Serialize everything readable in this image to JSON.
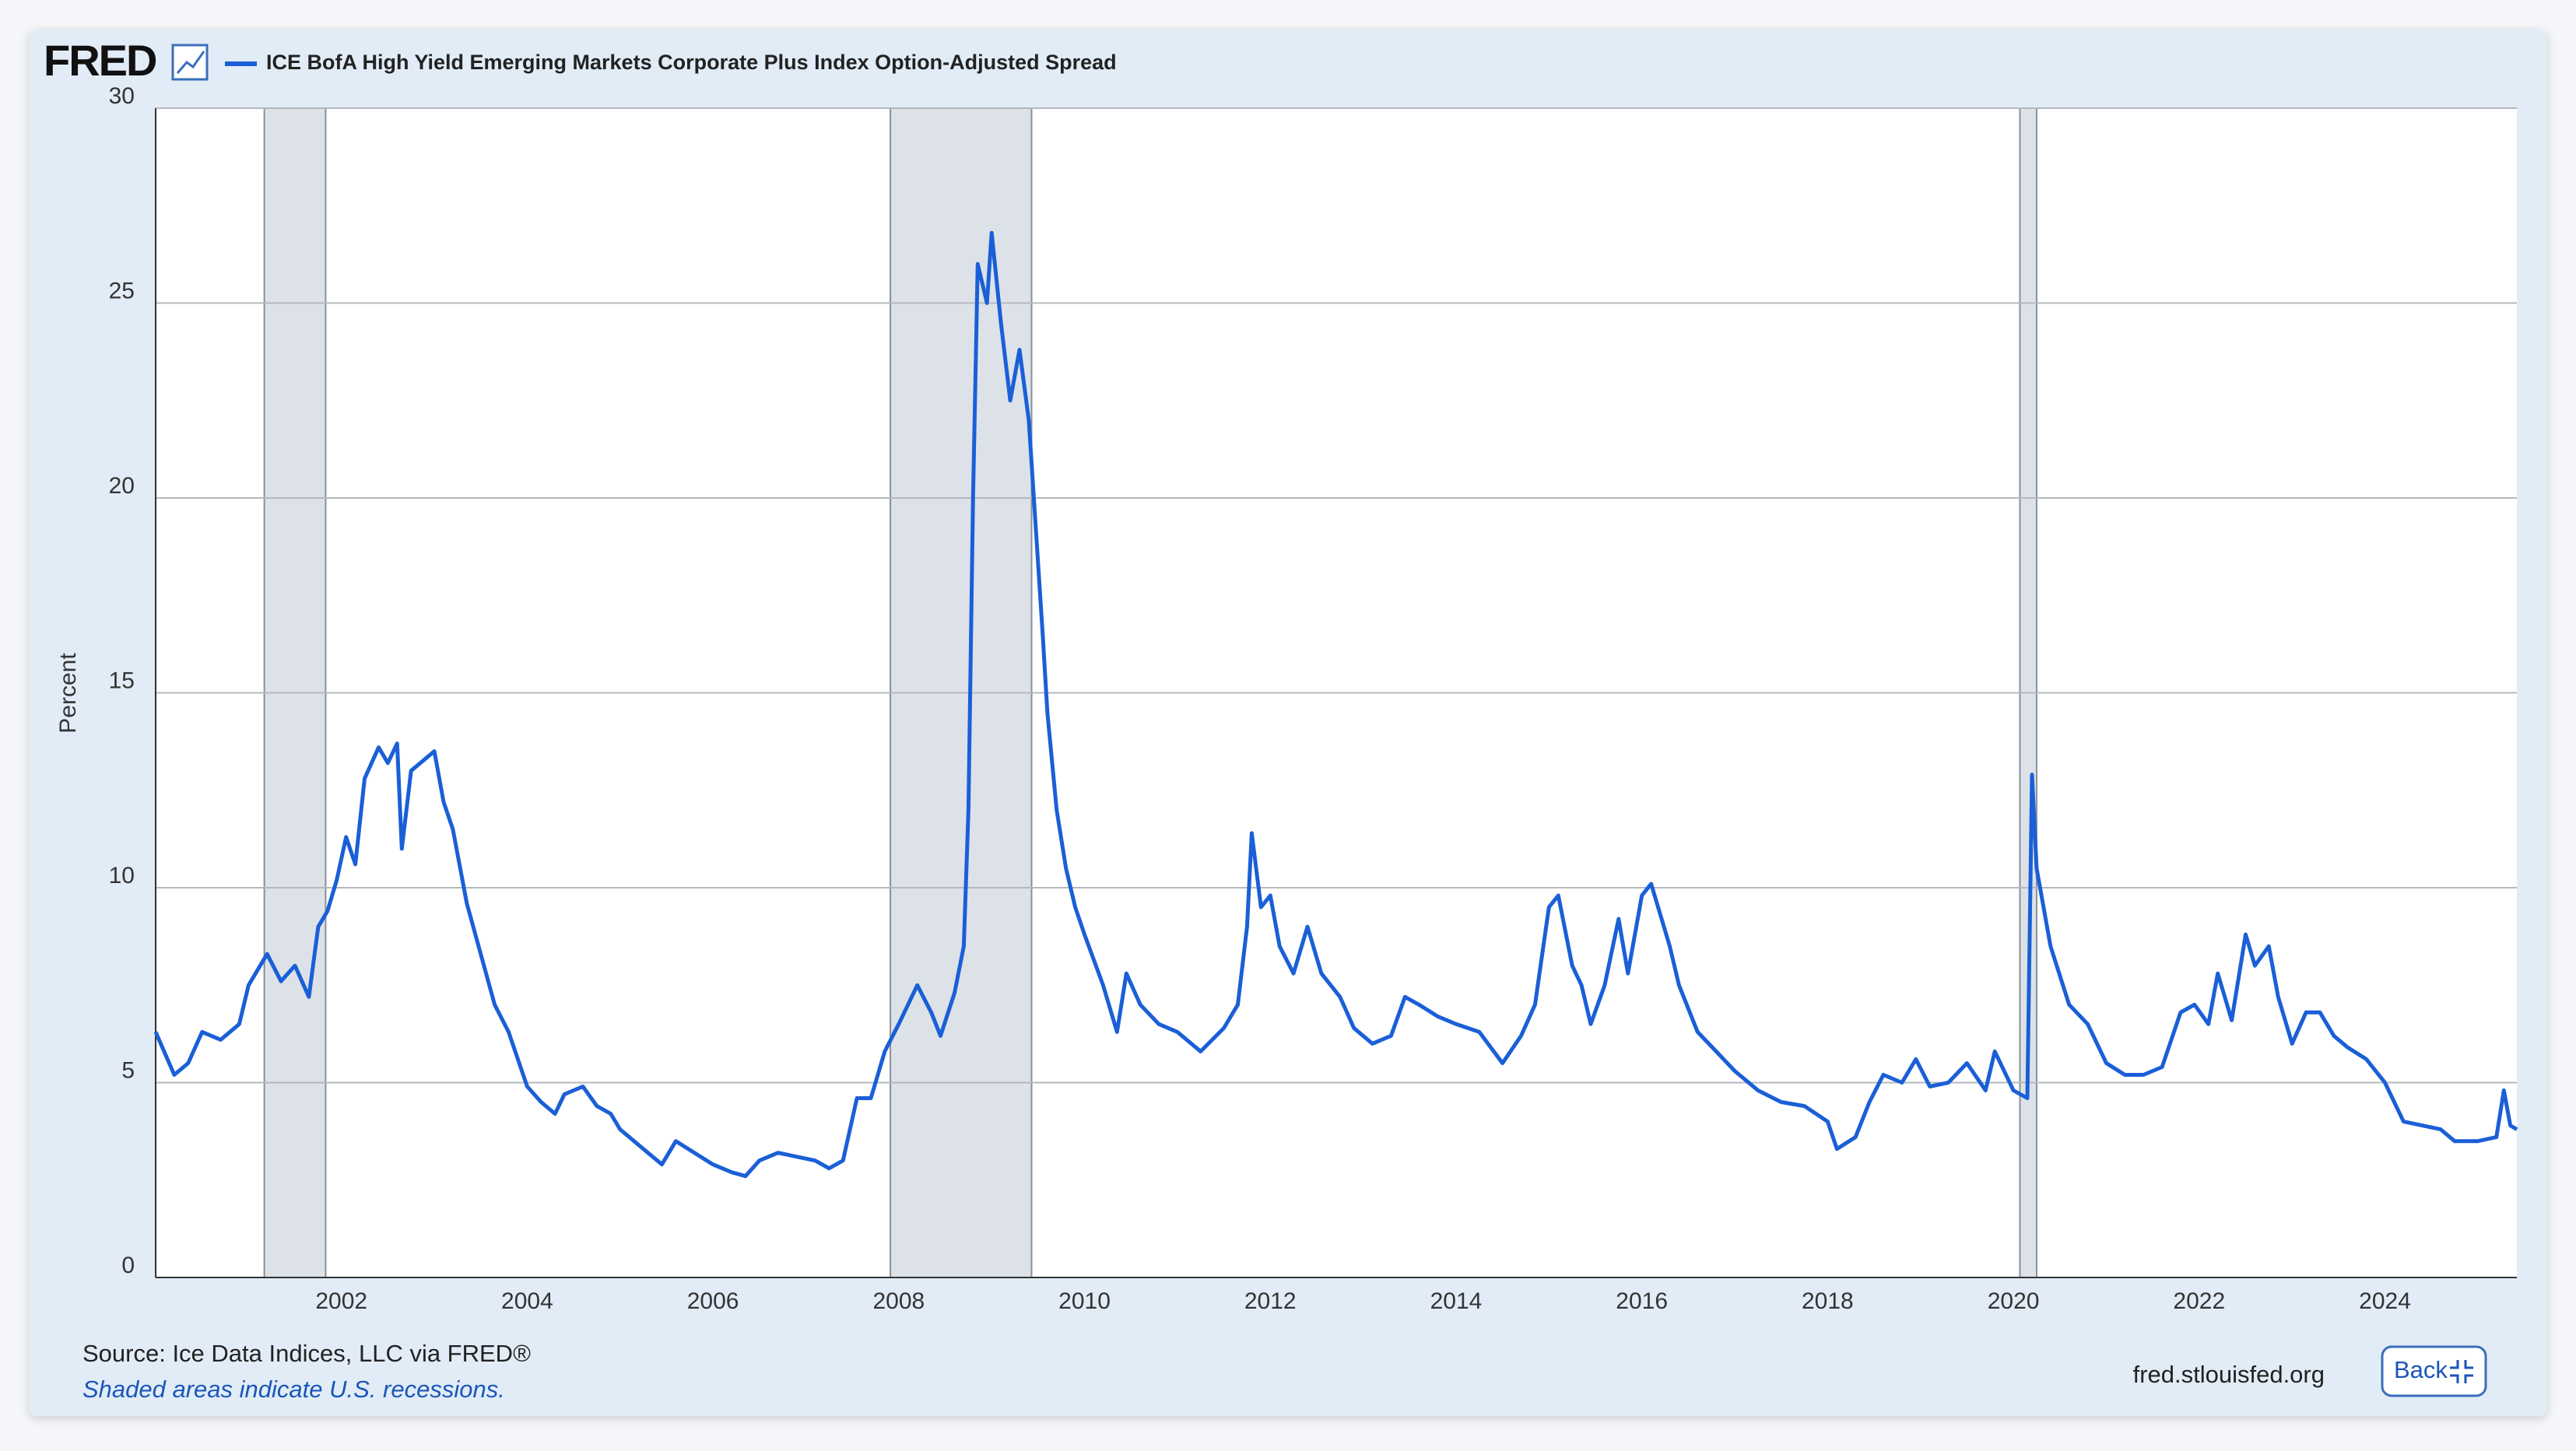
{
  "logo": "FRED",
  "source": "Source: Ice Data Indices, LLC via FRED®",
  "note": "Shaded areas indicate U.S. recessions.",
  "site": "fred.stlouisfed.org",
  "back_button": "Back",
  "chart_data": {
    "type": "line",
    "y_label": "Percent",
    "xlim": [
      2000,
      2025.42
    ],
    "ylim": [
      0,
      30
    ],
    "xticks": [
      2002,
      2004,
      2006,
      2008,
      2010,
      2012,
      2014,
      2016,
      2018,
      2020,
      2022,
      2024
    ],
    "yticks": [
      0,
      5,
      10,
      15,
      20,
      25,
      30
    ],
    "grid": true,
    "recessions": [
      [
        2001.17,
        2001.83
      ],
      [
        2007.91,
        2009.43
      ],
      [
        2020.07,
        2020.25
      ]
    ],
    "x": [
      2000.0,
      2000.2,
      2000.35,
      2000.5,
      2000.7,
      2000.9,
      2001.0,
      2001.2,
      2001.35,
      2001.5,
      2001.65,
      2001.75,
      2001.85,
      2001.95,
      2002.05,
      2002.15,
      2002.25,
      2002.4,
      2002.5,
      2002.6,
      2002.65,
      2002.75,
      2002.9,
      2003.0,
      2003.1,
      2003.2,
      2003.35,
      2003.5,
      2003.65,
      2003.8,
      2004.0,
      2004.15,
      2004.3,
      2004.4,
      2004.6,
      2004.75,
      2004.9,
      2005.0,
      2005.25,
      2005.45,
      2005.6,
      2005.8,
      2006.0,
      2006.2,
      2006.35,
      2006.5,
      2006.7,
      2006.9,
      2007.1,
      2007.25,
      2007.4,
      2007.55,
      2007.7,
      2007.85,
      2008.0,
      2008.2,
      2008.35,
      2008.45,
      2008.6,
      2008.7,
      2008.75,
      2008.8,
      2008.85,
      2008.95,
      2009.0,
      2009.1,
      2009.2,
      2009.3,
      2009.4,
      2009.55,
      2009.6,
      2009.7,
      2009.8,
      2009.9,
      2010.0,
      2010.2,
      2010.35,
      2010.45,
      2010.6,
      2010.8,
      2011.0,
      2011.25,
      2011.5,
      2011.65,
      2011.75,
      2011.8,
      2011.9,
      2012.0,
      2012.1,
      2012.25,
      2012.4,
      2012.55,
      2012.75,
      2012.9,
      2013.1,
      2013.3,
      2013.45,
      2013.6,
      2013.8,
      2014.0,
      2014.25,
      2014.5,
      2014.7,
      2014.85,
      2015.0,
      2015.1,
      2015.25,
      2015.35,
      2015.45,
      2015.6,
      2015.75,
      2015.85,
      2016.0,
      2016.1,
      2016.3,
      2016.4,
      2016.6,
      2016.8,
      2017.0,
      2017.25,
      2017.5,
      2017.75,
      2018.0,
      2018.1,
      2018.3,
      2018.45,
      2018.6,
      2018.8,
      2018.95,
      2019.1,
      2019.3,
      2019.5,
      2019.7,
      2019.8,
      2020.0,
      2020.15,
      2020.2,
      2020.25,
      2020.4,
      2020.6,
      2020.8,
      2021.0,
      2021.2,
      2021.4,
      2021.6,
      2021.8,
      2021.95,
      2022.1,
      2022.2,
      2022.35,
      2022.5,
      2022.6,
      2022.75,
      2022.85,
      2023.0,
      2023.15,
      2023.3,
      2023.45,
      2023.6,
      2023.8,
      2024.0,
      2024.2,
      2024.4,
      2024.6,
      2024.75,
      2025.0,
      2025.2,
      2025.28,
      2025.35,
      2025.42
    ],
    "series": [
      {
        "name": "ICE BofA High Yield Emerging Markets Corporate Plus Index Option-Adjusted Spread",
        "color": "#1a5fd7",
        "values": [
          6.3,
          5.2,
          5.5,
          6.3,
          6.1,
          6.5,
          7.5,
          8.3,
          7.6,
          8.0,
          7.2,
          9.0,
          9.4,
          10.2,
          11.3,
          10.6,
          12.8,
          13.6,
          13.2,
          13.7,
          11.0,
          13.0,
          13.3,
          13.5,
          12.2,
          11.5,
          9.6,
          8.3,
          7.0,
          6.3,
          4.9,
          4.5,
          4.2,
          4.7,
          4.9,
          4.4,
          4.2,
          3.8,
          3.3,
          2.9,
          3.5,
          3.2,
          2.9,
          2.7,
          2.6,
          3.0,
          3.2,
          3.1,
          3.0,
          2.8,
          3.0,
          4.6,
          4.6,
          5.8,
          6.5,
          7.5,
          6.8,
          6.2,
          7.3,
          8.5,
          12.0,
          20.0,
          26.0,
          25.0,
          26.8,
          24.5,
          22.5,
          23.8,
          22.0,
          16.5,
          14.5,
          12.0,
          10.5,
          9.5,
          8.8,
          7.5,
          6.3,
          7.8,
          7.0,
          6.5,
          6.3,
          5.8,
          6.4,
          7.0,
          9.0,
          11.4,
          9.5,
          9.8,
          8.5,
          7.8,
          9.0,
          7.8,
          7.2,
          6.4,
          6.0,
          6.2,
          7.2,
          7.0,
          6.7,
          6.5,
          6.3,
          5.5,
          6.2,
          7.0,
          9.5,
          9.8,
          8.0,
          7.5,
          6.5,
          7.5,
          9.2,
          7.8,
          9.8,
          10.1,
          8.5,
          7.5,
          6.3,
          5.8,
          5.3,
          4.8,
          4.5,
          4.4,
          4.0,
          3.3,
          3.6,
          4.5,
          5.2,
          5.0,
          5.6,
          4.9,
          5.0,
          5.5,
          4.8,
          5.8,
          4.8,
          4.6,
          12.9,
          10.5,
          8.5,
          7.0,
          6.5,
          5.5,
          5.2,
          5.2,
          5.4,
          6.8,
          7.0,
          6.5,
          7.8,
          6.6,
          8.8,
          8.0,
          8.5,
          7.2,
          6.0,
          6.8,
          6.8,
          6.2,
          5.9,
          5.6,
          5.0,
          4.0,
          3.9,
          3.8,
          3.5,
          3.5,
          3.6,
          4.8,
          3.9,
          3.8
        ]
      }
    ]
  }
}
